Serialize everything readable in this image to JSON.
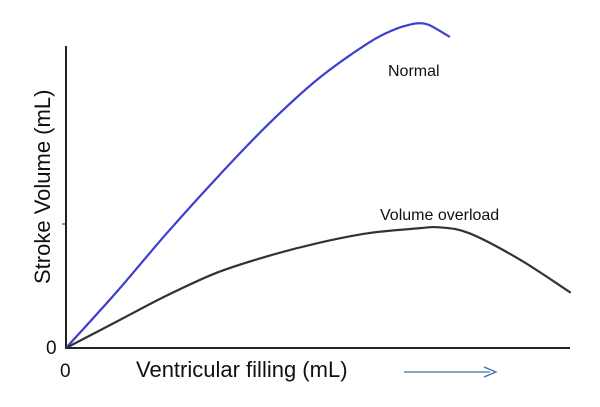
{
  "chart_data": {
    "type": "line",
    "title": "",
    "xlabel": "Ventricular filling (mL)",
    "ylabel": "Stroke Volume (mL)",
    "origin_x_label": "0",
    "origin_y_label": "0",
    "xlim": [
      0,
      100
    ],
    "ylim": [
      0,
      100
    ],
    "grid": false,
    "legend": "none",
    "annotations": [
      {
        "text": "Normal",
        "series": "Normal"
      },
      {
        "text": "Volume overload",
        "series": "Volume overload"
      }
    ],
    "series": [
      {
        "name": "Normal",
        "color": "#3b3fcf",
        "x": [
          0,
          10,
          20,
          30,
          40,
          50,
          60,
          65,
          68,
          70,
          72,
          76
        ],
        "y": [
          0,
          17,
          35,
          52,
          68,
          82,
          93,
          97,
          98.5,
          99,
          98.5,
          95
        ]
      },
      {
        "name": "Volume overload",
        "color": "#333333",
        "x": [
          0,
          10,
          20,
          30,
          40,
          50,
          60,
          70,
          74,
          80,
          90,
          100
        ],
        "y": [
          0,
          8,
          16,
          23,
          28,
          32,
          35,
          36.5,
          36.8,
          35,
          27,
          17
        ]
      }
    ],
    "arrow_color": "#3b6fb0"
  }
}
